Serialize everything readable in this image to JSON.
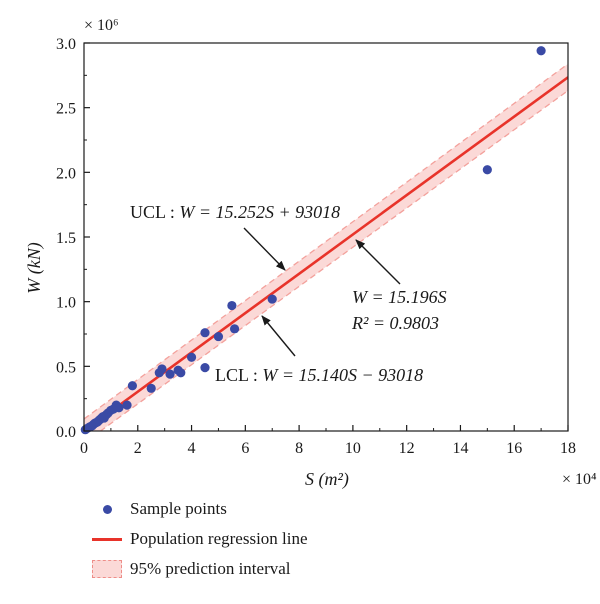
{
  "chart_data": {
    "type": "scatter",
    "xlabel": "S (m²)",
    "ylabel": "W (kN)",
    "x_multiplier": "× 10⁴",
    "y_multiplier": "× 10⁶",
    "xlim": [
      0,
      18
    ],
    "ylim": [
      0,
      3.0
    ],
    "x_ticks": [
      "0",
      "2",
      "4",
      "6",
      "8",
      "10",
      "12",
      "14",
      "16",
      "18"
    ],
    "y_ticks": [
      "0.0",
      "0.5",
      "1.0",
      "1.5",
      "2.0",
      "2.5",
      "3.0"
    ],
    "grid": false,
    "legend_position": "bottom",
    "series": [
      {
        "name": "Sample points",
        "kind": "scatter",
        "color": "#3a4aa5",
        "points": [
          [
            0.05,
            0.01
          ],
          [
            0.12,
            0.02
          ],
          [
            0.2,
            0.03
          ],
          [
            0.25,
            0.035
          ],
          [
            0.3,
            0.04
          ],
          [
            0.35,
            0.05
          ],
          [
            0.4,
            0.06
          ],
          [
            0.45,
            0.065
          ],
          [
            0.5,
            0.07
          ],
          [
            0.55,
            0.08
          ],
          [
            0.6,
            0.09
          ],
          [
            0.65,
            0.1
          ],
          [
            0.7,
            0.11
          ],
          [
            0.75,
            0.1
          ],
          [
            0.8,
            0.12
          ],
          [
            0.85,
            0.13
          ],
          [
            0.9,
            0.14
          ],
          [
            1.0,
            0.16
          ],
          [
            1.1,
            0.17
          ],
          [
            1.2,
            0.2
          ],
          [
            1.3,
            0.18
          ],
          [
            1.6,
            0.2
          ],
          [
            1.8,
            0.35
          ],
          [
            2.5,
            0.33
          ],
          [
            2.8,
            0.45
          ],
          [
            2.9,
            0.48
          ],
          [
            3.2,
            0.44
          ],
          [
            3.5,
            0.47
          ],
          [
            3.6,
            0.45
          ],
          [
            4.0,
            0.57
          ],
          [
            4.5,
            0.49
          ],
          [
            4.5,
            0.76
          ],
          [
            5.0,
            0.73
          ],
          [
            5.5,
            0.97
          ],
          [
            5.6,
            0.79
          ],
          [
            7.0,
            1.02
          ],
          [
            15.0,
            2.02
          ],
          [
            17.0,
            2.94
          ]
        ]
      },
      {
        "name": "Population regression line",
        "kind": "line",
        "color": "#e8332a",
        "slope": 15.196,
        "intercept": 0
      },
      {
        "name": "95% prediction interval",
        "kind": "band",
        "color": "#f3a19c",
        "upper": {
          "slope": 15.252,
          "intercept": 93018
        },
        "lower": {
          "slope": 15.14,
          "intercept": -93018
        }
      }
    ],
    "annotations": {
      "ucl": {
        "lead": "UCL : ",
        "formula": "W = 15.252S + 93018",
        "x": 6.0,
        "y": 1.47
      },
      "lcl": {
        "lead": "LCL : ",
        "formula": "W = 15.140S − 93018",
        "x": 5.7,
        "y": 0.48
      },
      "fit": {
        "formula": "W = 15.196S",
        "r2": "R² = 0.9803",
        "x": 10.1,
        "y": 1.41
      }
    }
  }
}
